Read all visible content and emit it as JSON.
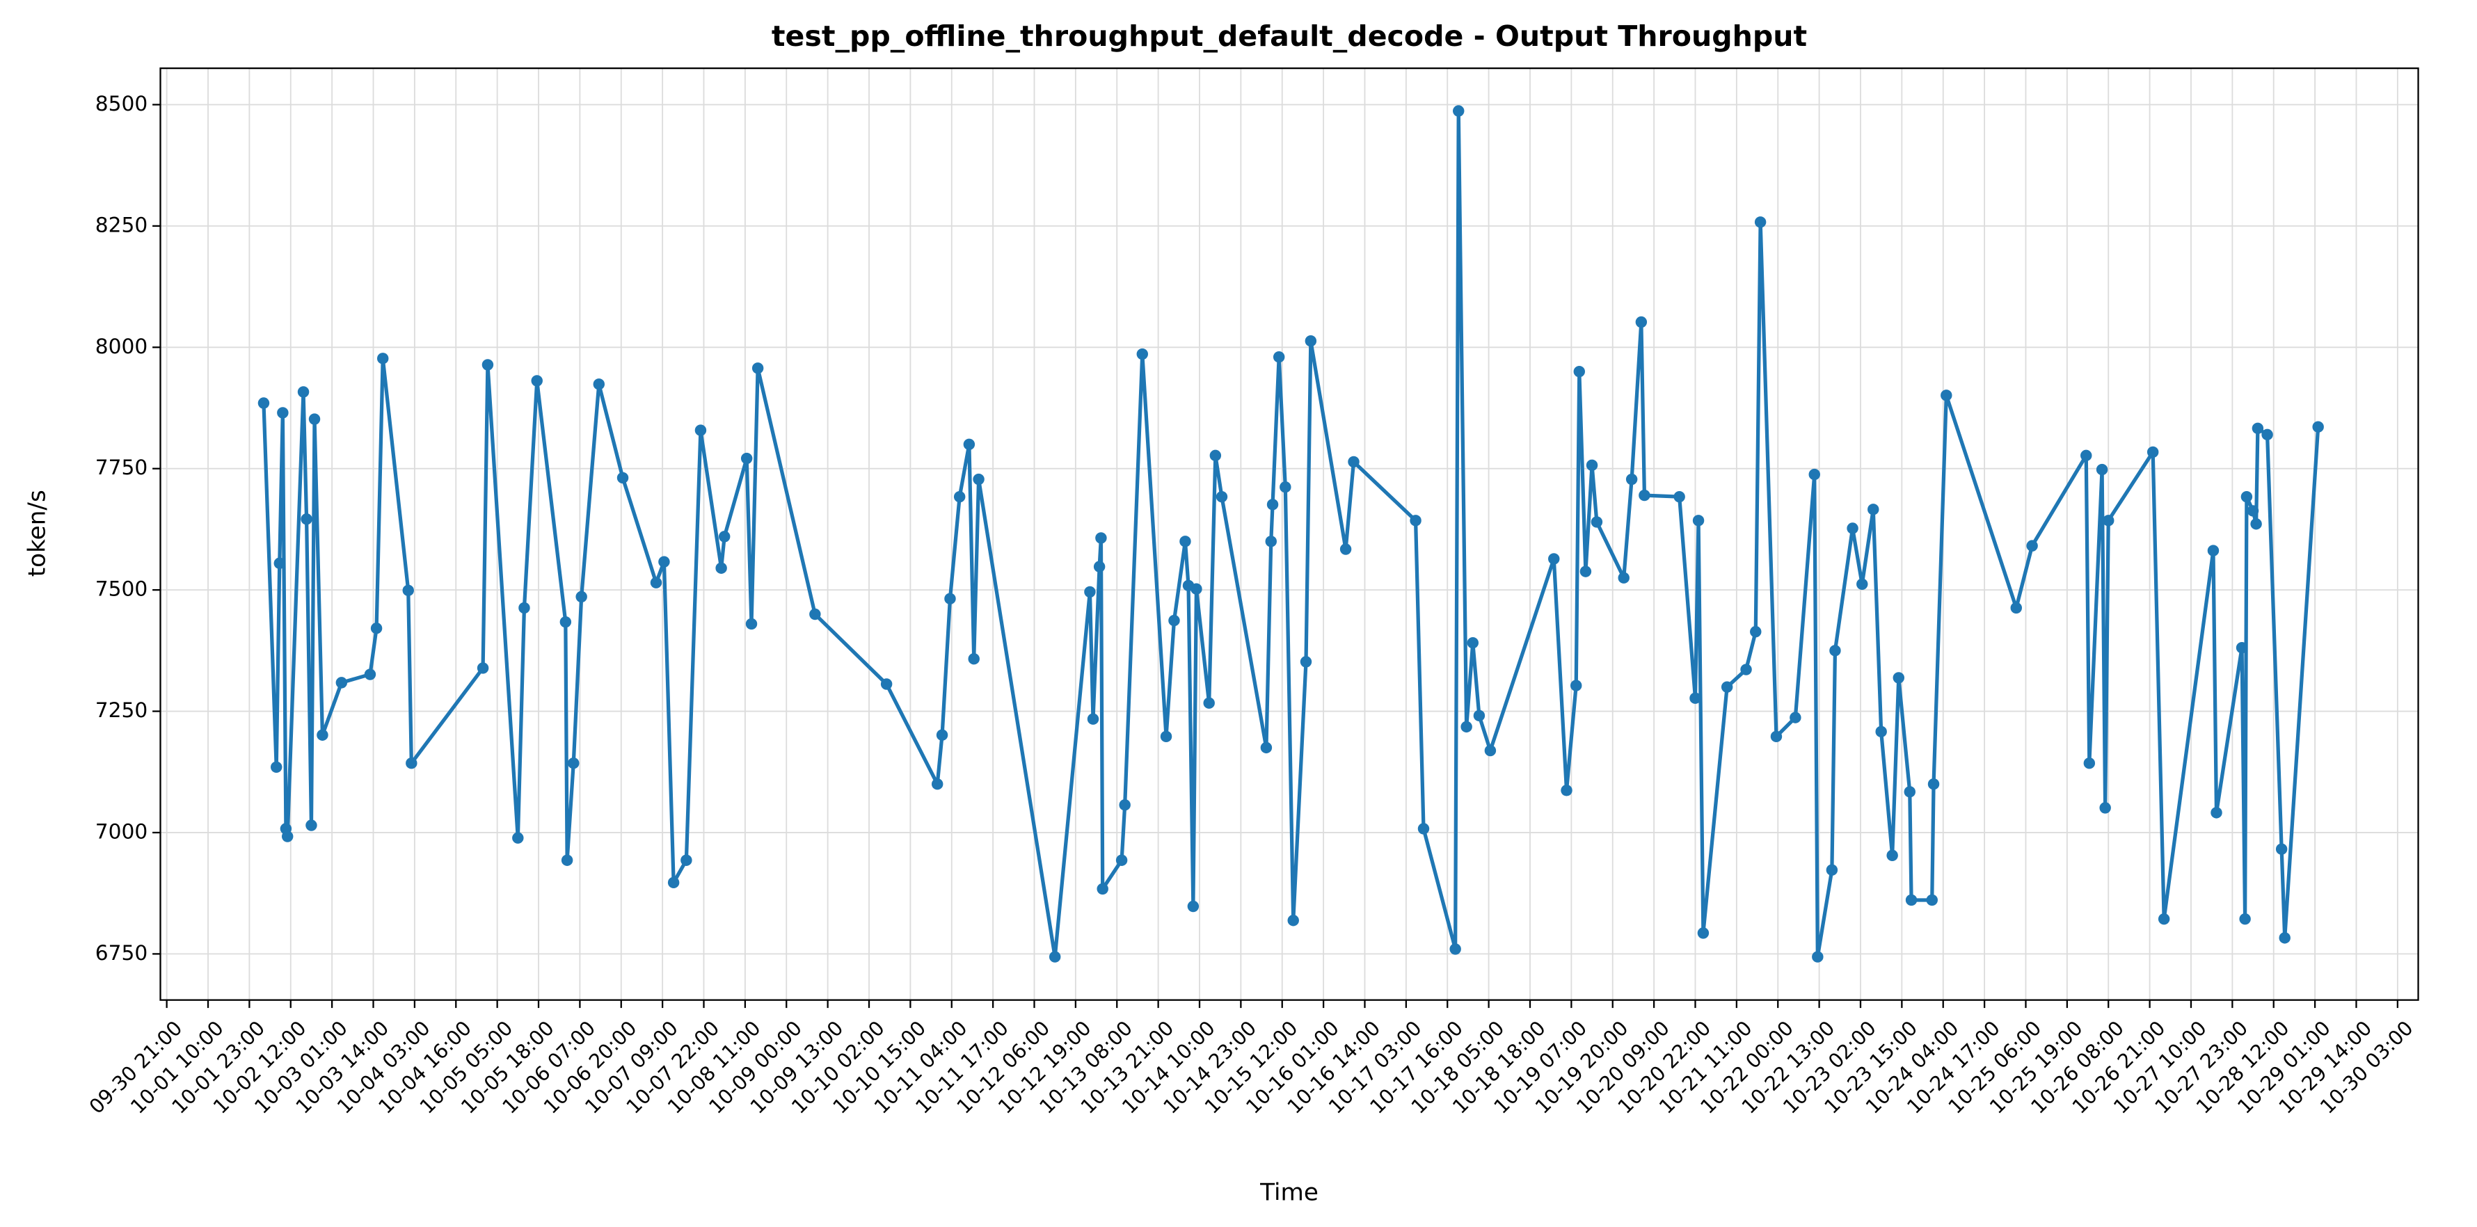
{
  "chart_data": {
    "type": "line",
    "title": "test_pp_offline_throughput_default_decode - Output Throughput",
    "x_label": "Time",
    "y_label": "token/s",
    "color": "#1f77b4",
    "grid": true,
    "markers": true,
    "x": [
      "10-02 03:30",
      "10-02 07:30",
      "10-02 08:30",
      "10-02 09:30",
      "10-02 10:30",
      "10-02 11:00",
      "10-02 16:00",
      "10-02 17:00",
      "10-02 18:30",
      "10-02 19:30",
      "10-02 22:00",
      "10-03 04:00",
      "10-03 13:00",
      "10-03 15:00",
      "10-03 17:00",
      "10-04 01:00",
      "10-04 02:00",
      "10-05 00:30",
      "10-05 02:00",
      "10-05 11:30",
      "10-05 13:30",
      "10-05 17:30",
      "10-06 02:30",
      "10-06 03:00",
      "10-06 05:00",
      "10-06 07:30",
      "10-06 13:00",
      "10-06 20:30",
      "10-07 07:00",
      "10-07 09:30",
      "10-07 12:30",
      "10-07 16:30",
      "10-07 21:00",
      "10-08 03:30",
      "10-08 04:30",
      "10-08 11:30",
      "10-08 13:00",
      "10-08 15:00",
      "10-09 09:00",
      "10-10 07:30",
      "10-10 23:30",
      "10-11 01:00",
      "10-11 03:30",
      "10-11 06:30",
      "10-11 09:30",
      "10-11 11:00",
      "10-11 12:30",
      "10-12 12:30",
      "10-12 23:30",
      "10-13 00:30",
      "10-13 02:30",
      "10-13 03:00",
      "10-13 03:30",
      "10-13 09:30",
      "10-13 10:30",
      "10-13 16:00",
      "10-13 23:30",
      "10-14 02:00",
      "10-14 05:30",
      "10-14 06:30",
      "10-14 08:00",
      "10-14 09:00",
      "10-14 13:00",
      "10-14 15:00",
      "10-14 17:00",
      "10-15 07:00",
      "10-15 08:30",
      "10-15 09:00",
      "10-15 11:00",
      "10-15 13:00",
      "10-15 15:30",
      "10-15 19:30",
      "10-15 21:00",
      "10-16 08:00",
      "10-16 10:30",
      "10-17 06:00",
      "10-17 08:30",
      "10-17 18:30",
      "10-17 19:30",
      "10-17 22:00",
      "10-18 00:00",
      "10-18 02:00",
      "10-18 05:30",
      "10-19 01:30",
      "10-19 05:30",
      "10-19 08:30",
      "10-19 09:30",
      "10-19 11:30",
      "10-19 13:30",
      "10-19 15:00",
      "10-19 23:30",
      "10-20 02:00",
      "10-20 05:00",
      "10-20 06:00",
      "10-20 17:00",
      "10-20 22:00",
      "10-20 23:00",
      "10-21 00:30",
      "10-21 08:00",
      "10-21 14:00",
      "10-21 17:00",
      "10-21 18:30",
      "10-21 23:30",
      "10-22 05:30",
      "10-22 11:30",
      "10-22 12:30",
      "10-22 17:00",
      "10-22 18:00",
      "10-22 23:30",
      "10-23 02:30",
      "10-23 06:00",
      "10-23 08:30",
      "10-23 12:00",
      "10-23 14:00",
      "10-23 17:30",
      "10-23 18:00",
      "10-24 00:30",
      "10-24 01:00",
      "10-24 05:00",
      "10-25 03:00",
      "10-25 08:00",
      "10-26 01:00",
      "10-26 02:00",
      "10-26 06:00",
      "10-26 07:00",
      "10-26 08:00",
      "10-26 22:00",
      "10-27 01:30",
      "10-27 17:00",
      "10-27 18:00",
      "10-28 02:00",
      "10-28 03:00",
      "10-28 03:30",
      "10-28 05:30",
      "10-28 06:30",
      "10-28 07:00",
      "10-28 10:00",
      "10-28 14:30",
      "10-28 15:30",
      "10-29 02:00"
    ],
    "values": [
      7885,
      7135,
      7555,
      7865,
      7008,
      6992,
      7908,
      7646,
      7015,
      7852,
      7201,
      7309,
      7326,
      7421,
      7977,
      7499,
      7143,
      7339,
      7964,
      6989,
      7463,
      7931,
      7434,
      6943,
      7143,
      7486,
      7924,
      7731,
      7515,
      7558,
      6897,
      6943,
      7829,
      7545,
      7610,
      7771,
      7430,
      7957,
      7450,
      7306,
      7100,
      7201,
      7482,
      7692,
      7800,
      7358,
      7728,
      6744,
      7496,
      7234,
      7548,
      7607,
      6884,
      6943,
      7057,
      7986,
      7198,
      7437,
      7600,
      7509,
      6848,
      7502,
      7267,
      7777,
      7692,
      7175,
      7600,
      7676,
      7980,
      7712,
      6819,
      7352,
      8013,
      7584,
      7764,
      7643,
      7008,
      6760,
      8487,
      7218,
      7391,
      7241,
      7169,
      7564,
      7087,
      7303,
      7950,
      7538,
      7757,
      7640,
      7525,
      7728,
      8052,
      7695,
      7692,
      7277,
      7643,
      6793,
      7300,
      7336,
      7414,
      8258,
      7198,
      7237,
      7738,
      6744,
      6923,
      7375,
      7627,
      7512,
      7666,
      7208,
      6953,
      7319,
      7084,
      6861,
      6861,
      7100,
      7901,
      7463,
      7591,
      7777,
      7143,
      7748,
      7051,
      7643,
      7784,
      6822,
      7581,
      7041,
      7381,
      6822,
      7692,
      7663,
      7636,
      7833,
      7820,
      6966,
      6783,
      7836
    ],
    "xlim": [
      "09-30 19:00",
      "10-30 09:30"
    ],
    "xticks": [
      "09-30 21:00",
      "10-01 10:00",
      "10-01 23:00",
      "10-02 12:00",
      "10-03 01:00",
      "10-03 14:00",
      "10-04 03:00",
      "10-04 16:00",
      "10-05 05:00",
      "10-05 18:00",
      "10-06 07:00",
      "10-06 20:00",
      "10-07 09:00",
      "10-07 22:00",
      "10-08 11:00",
      "10-09 00:00",
      "10-09 13:00",
      "10-10 02:00",
      "10-10 15:00",
      "10-11 04:00",
      "10-11 17:00",
      "10-12 06:00",
      "10-12 19:00",
      "10-13 08:00",
      "10-13 21:00",
      "10-14 10:00",
      "10-14 23:00",
      "10-15 12:00",
      "10-16 01:00",
      "10-16 14:00",
      "10-17 03:00",
      "10-17 16:00",
      "10-18 05:00",
      "10-18 18:00",
      "10-19 07:00",
      "10-19 20:00",
      "10-20 09:00",
      "10-20 22:00",
      "10-21 11:00",
      "10-22 00:00",
      "10-22 13:00",
      "10-23 02:00",
      "10-23 15:00",
      "10-24 04:00",
      "10-24 17:00",
      "10-25 06:00",
      "10-25 19:00",
      "10-26 08:00",
      "10-26 21:00",
      "10-27 10:00",
      "10-27 23:00",
      "10-28 12:00",
      "10-29 01:00",
      "10-29 14:00",
      "10-30 03:00"
    ],
    "ylim": [
      6655,
      8575
    ],
    "yticks": [
      6750,
      7000,
      7250,
      7500,
      7750,
      8000,
      8250,
      8500
    ]
  }
}
